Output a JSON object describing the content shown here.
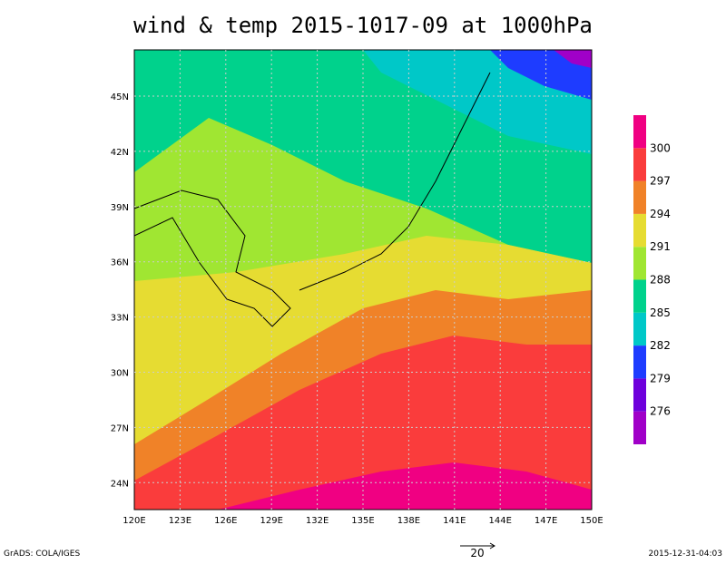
{
  "title": "wind & temp 2015-1017-09 at 1000hPa",
  "lon_labels": [
    "120E",
    "123E",
    "126E",
    "129E",
    "132E",
    "135E",
    "138E",
    "141E",
    "144E",
    "147E",
    "150E"
  ],
  "lat_labels": [
    "45N",
    "42N",
    "39N",
    "36N",
    "33N",
    "30N",
    "27N",
    "24N"
  ],
  "colorbar": {
    "colors": [
      "#a000c8",
      "#6e00dc",
      "#1e3cff",
      "#00c8c8",
      "#00d28c",
      "#a0e632",
      "#e6dc32",
      "#f08228",
      "#fa3c3c",
      "#f00082"
    ],
    "labels": [
      "276",
      "279",
      "282",
      "285",
      "288",
      "291",
      "294",
      "297",
      "300"
    ]
  },
  "reference_vector": "20",
  "footer": {
    "left": "GrADS: COLA/IGES",
    "right": "2015-12-31-04:03"
  }
}
